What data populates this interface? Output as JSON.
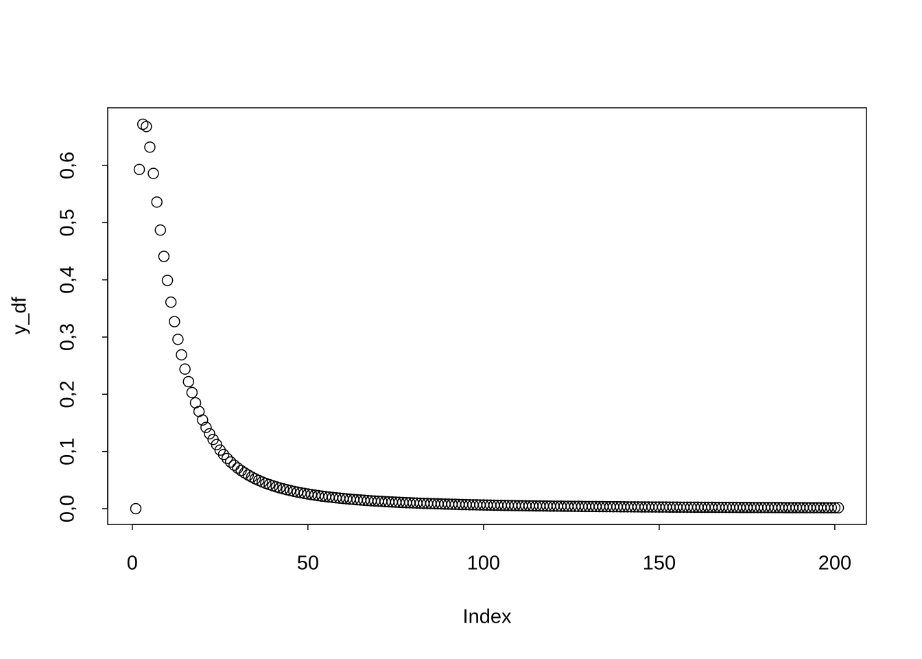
{
  "chart_data": {
    "type": "scatter",
    "x_label": "Index",
    "y_label": "y_df",
    "x": [
      1,
      2,
      3,
      4,
      5,
      6,
      7,
      8,
      9,
      10,
      11,
      12,
      13,
      14,
      15,
      16,
      17,
      18,
      19,
      20,
      21,
      22,
      23,
      24,
      25,
      26,
      27,
      28,
      29,
      30,
      31,
      32,
      33,
      34,
      35,
      36,
      37,
      38,
      39,
      40,
      41,
      42,
      43,
      44,
      45,
      46,
      47,
      48,
      49,
      50,
      51,
      52,
      53,
      54,
      55,
      56,
      57,
      58,
      59,
      60,
      61,
      62,
      63,
      64,
      65,
      66,
      67,
      68,
      69,
      70,
      71,
      72,
      73,
      74,
      75,
      76,
      77,
      78,
      79,
      80,
      81,
      82,
      83,
      84,
      85,
      86,
      87,
      88,
      89,
      90,
      91,
      92,
      93,
      94,
      95,
      96,
      97,
      98,
      99,
      100,
      101,
      102,
      103,
      104,
      105,
      106,
      107,
      108,
      109,
      110,
      111,
      112,
      113,
      114,
      115,
      116,
      117,
      118,
      119,
      120,
      121,
      122,
      123,
      124,
      125,
      126,
      127,
      128,
      129,
      130,
      131,
      132,
      133,
      134,
      135,
      136,
      137,
      138,
      139,
      140,
      141,
      142,
      143,
      144,
      145,
      146,
      147,
      148,
      149,
      150,
      151,
      152,
      153,
      154,
      155,
      156,
      157,
      158,
      159,
      160,
      161,
      162,
      163,
      164,
      165,
      166,
      167,
      168,
      169,
      170,
      171,
      172,
      173,
      174,
      175,
      176,
      177,
      178,
      179,
      180,
      181,
      182,
      183,
      184,
      185,
      186,
      187,
      188,
      189,
      190,
      191,
      192,
      193,
      194,
      195,
      196,
      197,
      198,
      199,
      200,
      201
    ],
    "values": [
      0,
      0.593,
      0.672,
      0.668,
      0.632,
      0.586,
      0.536,
      0.487,
      0.441,
      0.399,
      0.361,
      0.327,
      0.296,
      0.269,
      0.244,
      0.222,
      0.203,
      0.185,
      0.17,
      0.155,
      0.142,
      0.131,
      0.121,
      0.112,
      0.1024,
      0.0947,
      0.0878,
      0.0816,
      0.0761,
      0.0711,
      0.0666,
      0.0625,
      0.0588,
      0.0554,
      0.0522,
      0.0494,
      0.0467,
      0.0443,
      0.0421,
      0.04,
      0.0381,
      0.0363,
      0.0346,
      0.0331,
      0.0316,
      0.0302,
      0.029,
      0.0278,
      0.0267,
      0.0256,
      0.0246,
      0.0237,
      0.0228,
      0.0219,
      0.0212,
      0.0204,
      0.0197,
      0.019,
      0.0184,
      0.0178,
      0.0172,
      0.0166,
      0.0161,
      0.0156,
      0.0151,
      0.0147,
      0.0143,
      0.0138,
      0.0134,
      0.0131,
      0.0127,
      0.0123,
      0.012,
      0.0117,
      0.0114,
      0.0111,
      0.0108,
      0.0105,
      0.0103,
      0.01,
      0.0098,
      0.0095,
      0.0093,
      0.0091,
      0.0089,
      0.0087,
      0.0085,
      0.0083,
      0.0081,
      0.0079,
      0.0077,
      0.0076,
      0.0074,
      0.0072,
      0.0071,
      0.0069,
      0.0068,
      0.0067,
      0.0065,
      0.0064,
      0.0063,
      0.0062,
      0.006,
      0.0059,
      0.0058,
      0.0057,
      0.0056,
      0.0055,
      0.0054,
      0.0053,
      0.0052,
      0.0051,
      0.005,
      0.0049,
      0.0048,
      0.0048,
      0.0047,
      0.0046,
      0.0045,
      0.0044,
      0.0044,
      0.0043,
      0.0042,
      0.0042,
      0.0041,
      0.004,
      0.004,
      0.0039,
      0.0038,
      0.0038,
      0.0037,
      0.0037,
      0.0036,
      0.0036,
      0.0035,
      0.0035,
      0.0034,
      0.0034,
      0.0033,
      0.0033,
      0.0032,
      0.0032,
      0.0031,
      0.0031,
      0.003,
      0.003,
      0.003,
      0.0029,
      0.0029,
      0.0028,
      0.0028,
      0.0028,
      0.0027,
      0.0027,
      0.0027,
      0.0026,
      0.0026,
      0.0026,
      0.0025,
      0.0025,
      0.0025,
      0.0024,
      0.0024,
      0.0024,
      0.0024,
      0.0023,
      0.0023,
      0.0023,
      0.0022,
      0.0022,
      0.0022,
      0.0022,
      0.0021,
      0.0021,
      0.0021,
      0.0021,
      0.002,
      0.002,
      0.002,
      0.002,
      0.002,
      0.0019,
      0.0019,
      0.0019,
      0.0019,
      0.0018,
      0.0018,
      0.0018,
      0.0018,
      0.0018,
      0.0018,
      0.0017,
      0.0017,
      0.0017,
      0.0017,
      0.0017,
      0.0016,
      0.0016,
      0.0016,
      0.0016,
      0.0016
    ],
    "color": "#000000",
    "xlim": [
      -7,
      209
    ],
    "xticks": [
      0,
      50,
      100,
      150,
      200
    ],
    "ylim": [
      -0.0276,
      0.7008
    ],
    "yticks": [
      {
        "value": 0,
        "label": "0,0"
      },
      {
        "value": 0.1,
        "label": "0,1"
      },
      {
        "value": 0.2,
        "label": "0,2"
      },
      {
        "value": 0.3,
        "label": "0,3"
      },
      {
        "value": 0.4,
        "label": "0,4"
      },
      {
        "value": 0.5,
        "label": "0,5"
      },
      {
        "value": 0.6,
        "label": "0,6"
      }
    ]
  }
}
